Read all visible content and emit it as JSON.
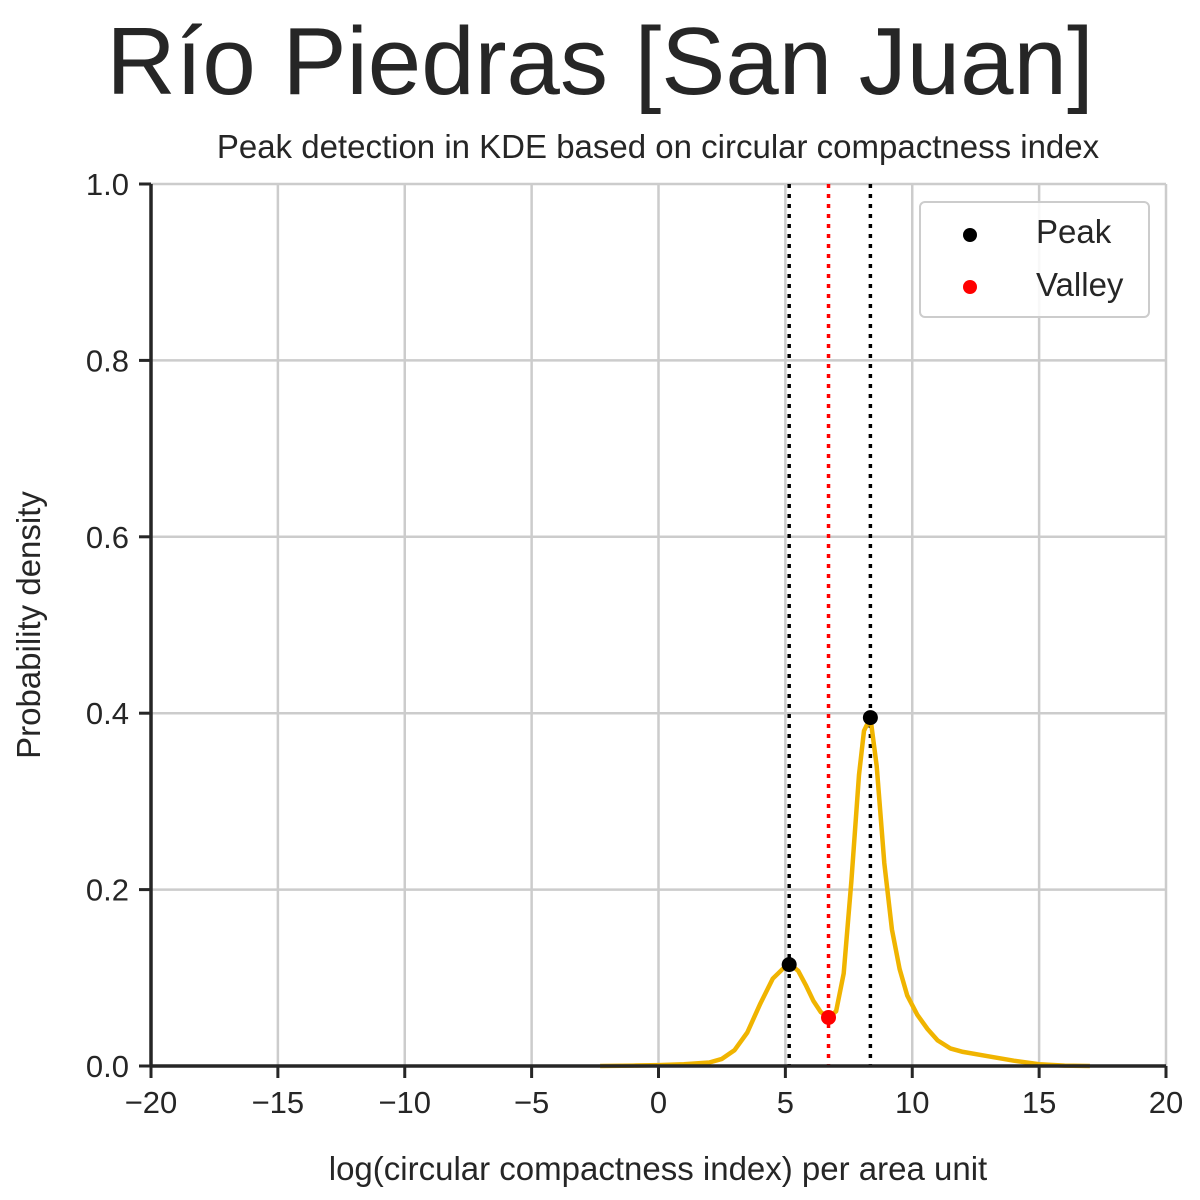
{
  "suptitle": "Río Piedras [San Juan]",
  "chart_data": {
    "type": "line",
    "title": "Peak detection in KDE based on circular compactness index",
    "xlabel": "log(circular compactness index) per area unit",
    "ylabel": "Probability density",
    "xlim": [
      -20,
      20
    ],
    "ylim": [
      0,
      1.0
    ],
    "xticks": [
      -20,
      -15,
      -10,
      -5,
      0,
      5,
      10,
      15,
      20
    ],
    "xtick_labels": [
      "−20",
      "−15",
      "−10",
      "−5",
      "0",
      "5",
      "10",
      "15",
      "20"
    ],
    "yticks": [
      0,
      0.2,
      0.4,
      0.6,
      0.8,
      1.0
    ],
    "ytick_labels": [
      "0.0",
      "0.2",
      "0.4",
      "0.6",
      "0.8",
      "1.0"
    ],
    "grid": true,
    "legend_position": "top-right",
    "series": [
      {
        "kind": "kde",
        "color": "#f0b400",
        "x": [
          -2.3,
          -1,
          0,
          1,
          2,
          2.5,
          3,
          3.5,
          4,
          4.5,
          5,
          5.2,
          5.5,
          5.8,
          6.1,
          6.4,
          6.7,
          7.0,
          7.3,
          7.6,
          7.9,
          8.1,
          8.35,
          8.6,
          8.9,
          9.2,
          9.5,
          9.8,
          10.2,
          10.6,
          11,
          11.5,
          12,
          13,
          14,
          15,
          16,
          17
        ],
        "y": [
          0.0,
          0.0005,
          0.001,
          0.002,
          0.004,
          0.008,
          0.018,
          0.038,
          0.07,
          0.099,
          0.113,
          0.115,
          0.108,
          0.092,
          0.074,
          0.061,
          0.055,
          0.062,
          0.105,
          0.21,
          0.33,
          0.38,
          0.395,
          0.34,
          0.23,
          0.155,
          0.11,
          0.08,
          0.058,
          0.042,
          0.029,
          0.02,
          0.016,
          0.011,
          0.006,
          0.002,
          0.0005,
          0.0
        ]
      }
    ],
    "peaks": {
      "name": "Peak",
      "color": "#000000",
      "x": [
        5.15,
        8.35
      ],
      "y": [
        0.115,
        0.395
      ]
    },
    "valleys": {
      "name": "Valley",
      "color": "#ff0000",
      "x": [
        6.7
      ],
      "y": [
        0.055
      ]
    },
    "vlines": [
      {
        "x": 5.15,
        "color": "#000000"
      },
      {
        "x": 6.7,
        "color": "#ff0000"
      },
      {
        "x": 8.35,
        "color": "#000000"
      }
    ],
    "colors": {
      "grid": "#cccccc",
      "axis": "#262626",
      "curve": "#f0b400"
    }
  }
}
